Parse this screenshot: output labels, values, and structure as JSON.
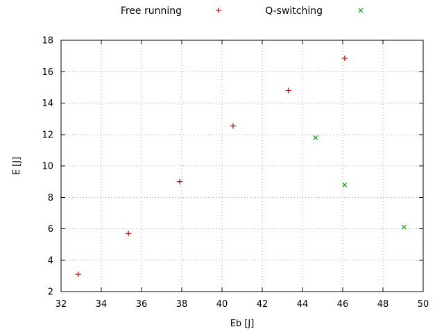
{
  "chart_data": {
    "type": "scatter",
    "title": "",
    "xlabel": "Eb [J]",
    "ylabel": "E [J]",
    "xlim": [
      32,
      50
    ],
    "ylim": [
      2,
      18
    ],
    "xticks": [
      32,
      34,
      36,
      38,
      40,
      42,
      44,
      46,
      48,
      50
    ],
    "yticks": [
      2,
      4,
      6,
      8,
      10,
      12,
      14,
      16,
      18
    ],
    "grid": true,
    "legend_position": "top-center",
    "series": [
      {
        "name": "Free running",
        "marker": "plus",
        "color": "#cc0000",
        "points": [
          [
            32.85,
            3.1
          ],
          [
            35.35,
            5.7
          ],
          [
            37.9,
            9.0
          ],
          [
            40.55,
            12.55
          ],
          [
            43.3,
            14.8
          ],
          [
            46.1,
            16.85
          ]
        ]
      },
      {
        "name": "Q-switching",
        "marker": "cross",
        "color": "#00a000",
        "points": [
          [
            44.65,
            11.8
          ],
          [
            46.1,
            8.8
          ],
          [
            49.05,
            6.1
          ]
        ]
      }
    ]
  },
  "colors": {
    "background": "#ffffff",
    "axis": "#000000",
    "grid": "#a8a8a8",
    "text": "#000000"
  }
}
